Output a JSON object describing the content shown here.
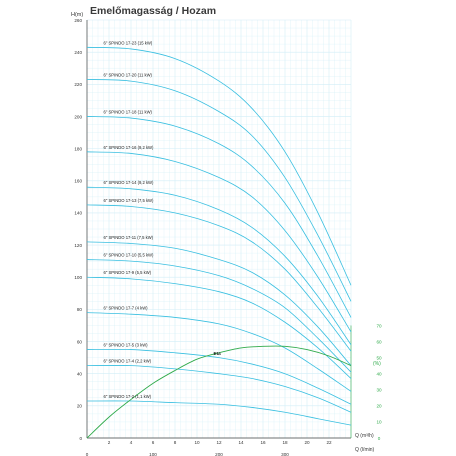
{
  "chart_data": {
    "type": "line",
    "title": "Emelőmagasság / Hozam",
    "y_unit": "H(m)",
    "x_unit_top": "Q (m³/h)",
    "x_unit_bottom": "Q (l/min)",
    "eff_unit": "(%)",
    "eff_label": "Eta",
    "ylim": [
      0,
      260
    ],
    "y_ticks": [
      "0",
      "20",
      "40",
      "60",
      "80",
      "100",
      "120",
      "140",
      "160",
      "180",
      "200",
      "220",
      "240",
      "260"
    ],
    "xlim": [
      0,
      24
    ],
    "x_ticks": [
      "2",
      "4",
      "6",
      "8",
      "10",
      "12",
      "14",
      "16",
      "18",
      "20",
      "22"
    ],
    "x_ticks_bottom": [
      "0",
      "100",
      "200",
      "300"
    ],
    "eff_ticks": [
      "0",
      "10",
      "20",
      "30",
      "40",
      "50",
      "60",
      "70"
    ],
    "grid": true,
    "colors": {
      "pump_curves": "#39bfe0",
      "efficiency": "#2faa4a",
      "grid": "#d2eef7"
    },
    "series": [
      {
        "name": "6\" SPINDO 17-23 (15 kW)",
        "values": [
          [
            0,
            243
          ],
          [
            4,
            242
          ],
          [
            8,
            236
          ],
          [
            12,
            222
          ],
          [
            15,
            205
          ],
          [
            18,
            178
          ],
          [
            21,
            140
          ],
          [
            24,
            95
          ]
        ]
      },
      {
        "name": "6\" SPINDO 17-20 (11 kW)",
        "values": [
          [
            0,
            223
          ],
          [
            4,
            222
          ],
          [
            8,
            216
          ],
          [
            12,
            203
          ],
          [
            15,
            188
          ],
          [
            18,
            162
          ],
          [
            21,
            126
          ],
          [
            24,
            85
          ]
        ]
      },
      {
        "name": "6\" SPINDO 17-18 (11 kW)",
        "values": [
          [
            0,
            200
          ],
          [
            4,
            199
          ],
          [
            8,
            194
          ],
          [
            12,
            183
          ],
          [
            15,
            169
          ],
          [
            18,
            146
          ],
          [
            21,
            113
          ],
          [
            24,
            75
          ]
        ]
      },
      {
        "name": "6\" SPINDO 17-16 (9,2 kW)",
        "values": [
          [
            0,
            178
          ],
          [
            4,
            177
          ],
          [
            8,
            172
          ],
          [
            12,
            162
          ],
          [
            15,
            150
          ],
          [
            18,
            129
          ],
          [
            21,
            100
          ],
          [
            24,
            66
          ]
        ]
      },
      {
        "name": "6\" SPINDO 17-14 (9,2 kW)",
        "values": [
          [
            0,
            156
          ],
          [
            4,
            155
          ],
          [
            8,
            151
          ],
          [
            12,
            142
          ],
          [
            15,
            131
          ],
          [
            18,
            113
          ],
          [
            21,
            88
          ],
          [
            24,
            58
          ]
        ]
      },
      {
        "name": "6\" SPINDO 17-13 (7,5 kW)",
        "values": [
          [
            0,
            145
          ],
          [
            4,
            144
          ],
          [
            8,
            140
          ],
          [
            12,
            132
          ],
          [
            15,
            122
          ],
          [
            18,
            105
          ],
          [
            21,
            81
          ],
          [
            24,
            54
          ]
        ]
      },
      {
        "name": "6\" SPINDO 17-11 (7,5 kW)",
        "values": [
          [
            0,
            122
          ],
          [
            4,
            121
          ],
          [
            8,
            118
          ],
          [
            12,
            111
          ],
          [
            15,
            103
          ],
          [
            18,
            89
          ],
          [
            21,
            69
          ],
          [
            24,
            45
          ]
        ]
      },
      {
        "name": "6\" SPINDO 17-10 (5,5 kW)",
        "values": [
          [
            0,
            111
          ],
          [
            4,
            110
          ],
          [
            8,
            107
          ],
          [
            12,
            101
          ],
          [
            15,
            93
          ],
          [
            18,
            81
          ],
          [
            21,
            62
          ],
          [
            24,
            41
          ]
        ]
      },
      {
        "name": "6\" SPINDO 17-9 (5,5 kW)",
        "values": [
          [
            0,
            100
          ],
          [
            4,
            99
          ],
          [
            8,
            96
          ],
          [
            12,
            91
          ],
          [
            15,
            84
          ],
          [
            18,
            72
          ],
          [
            21,
            56
          ],
          [
            24,
            37
          ]
        ]
      },
      {
        "name": "6\" SPINDO 17-7 (4 kW)",
        "values": [
          [
            0,
            78
          ],
          [
            4,
            77
          ],
          [
            8,
            75
          ],
          [
            12,
            71
          ],
          [
            15,
            65
          ],
          [
            18,
            56
          ],
          [
            21,
            43
          ],
          [
            24,
            29
          ]
        ]
      },
      {
        "name": "6\" SPINDO 17-5 (3 kW)",
        "values": [
          [
            0,
            55
          ],
          [
            4,
            55
          ],
          [
            8,
            53
          ],
          [
            12,
            50
          ],
          [
            15,
            46
          ],
          [
            18,
            40
          ],
          [
            21,
            31
          ],
          [
            24,
            21
          ]
        ]
      },
      {
        "name": "6\" SPINDO 17-4 (2,2 kW)",
        "values": [
          [
            0,
            45
          ],
          [
            4,
            45
          ],
          [
            8,
            43
          ],
          [
            12,
            40
          ],
          [
            15,
            37
          ],
          [
            18,
            32
          ],
          [
            21,
            25
          ],
          [
            24,
            16
          ]
        ]
      },
      {
        "name": "6\" SPINDO 17-2 (1,1 kW)",
        "values": [
          [
            0,
            23
          ],
          [
            4,
            23
          ],
          [
            8,
            22
          ],
          [
            12,
            21
          ],
          [
            15,
            19
          ],
          [
            18,
            16
          ],
          [
            21,
            12
          ],
          [
            24,
            8
          ]
        ]
      },
      {
        "name": "Eta",
        "values": [
          [
            0,
            0
          ],
          [
            2,
            13
          ],
          [
            4,
            24
          ],
          [
            6,
            34
          ],
          [
            8,
            42
          ],
          [
            10,
            49
          ],
          [
            12,
            53
          ],
          [
            14,
            56
          ],
          [
            16,
            57
          ],
          [
            18,
            57
          ],
          [
            20,
            55
          ],
          [
            22,
            51
          ],
          [
            24,
            45
          ]
        ]
      }
    ]
  }
}
